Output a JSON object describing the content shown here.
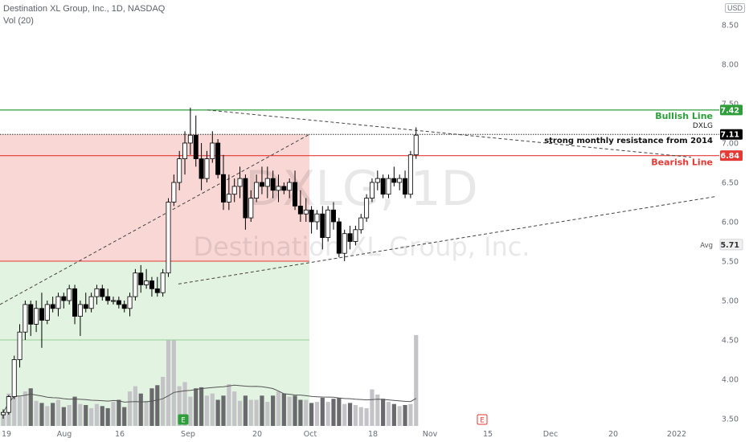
{
  "header": {
    "title": "Destination XL Group, Inc., 1D, NASDAQ",
    "volume_label": "Vol (20)",
    "currency_badge": "USD"
  },
  "watermark": {
    "symbol_line": "DXLG, 1D",
    "name_line": "Destination XL Group, Inc."
  },
  "colors": {
    "up_candle": "#ffffff",
    "down_candle": "#000000",
    "bullish": "#2e9e3b",
    "bearish": "#e53935",
    "red_zone": "#f7c9c7",
    "green_zone": "#d9efd7",
    "volume_light": "#c4c4c8",
    "volume_dark": "#6a6a6e",
    "volume_ma": "#555555"
  },
  "chart_data": {
    "type": "candlestick",
    "title": "Destination XL Group, Inc., 1D, NASDAQ",
    "y_range": [
      3.4,
      8.7
    ],
    "y_ticks": [
      "3.50",
      "4.00",
      "4.50",
      "5.00",
      "5.50",
      "6.00",
      "6.50",
      "7.00",
      "7.50",
      "8.00",
      "8.50"
    ],
    "x_tick_labels": [
      "19",
      "Aug",
      "16",
      "Sep",
      "20",
      "Oct",
      "18",
      "Nov",
      "15",
      "Dec",
      "20",
      "2022"
    ],
    "grid": false,
    "candles_ohlc": [
      [
        3.55,
        3.62,
        3.5,
        3.58
      ],
      [
        3.58,
        3.8,
        3.55,
        3.78
      ],
      [
        3.78,
        4.3,
        3.75,
        4.25
      ],
      [
        4.25,
        4.7,
        4.15,
        4.6
      ],
      [
        4.6,
        5.0,
        4.5,
        4.95
      ],
      [
        4.95,
        5.0,
        4.55,
        4.7
      ],
      [
        4.7,
        5.0,
        4.6,
        4.9
      ],
      [
        4.9,
        5.1,
        4.4,
        4.75
      ],
      [
        4.75,
        5.0,
        4.7,
        4.95
      ],
      [
        4.95,
        5.05,
        4.85,
        4.9
      ],
      [
        4.9,
        5.1,
        4.8,
        5.05
      ],
      [
        5.05,
        5.1,
        4.9,
        5.0
      ],
      [
        5.0,
        5.2,
        4.95,
        5.15
      ],
      [
        5.15,
        5.2,
        4.7,
        4.8
      ],
      [
        4.8,
        5.0,
        4.55,
        4.95
      ],
      [
        4.95,
        5.1,
        4.85,
        4.9
      ],
      [
        4.9,
        5.1,
        4.85,
        5.05
      ],
      [
        5.05,
        5.2,
        4.95,
        5.15
      ],
      [
        5.15,
        5.2,
        5.0,
        5.05
      ],
      [
        5.05,
        5.15,
        4.95,
        5.0
      ],
      [
        5.0,
        5.05,
        4.95,
        5.0
      ],
      [
        5.0,
        5.05,
        4.9,
        4.95
      ],
      [
        4.95,
        5.0,
        4.85,
        4.9
      ],
      [
        4.9,
        5.1,
        4.8,
        5.05
      ],
      [
        5.05,
        5.4,
        5.0,
        5.35
      ],
      [
        5.35,
        5.45,
        5.1,
        5.2
      ],
      [
        5.2,
        5.4,
        5.15,
        5.25
      ],
      [
        5.25,
        5.3,
        5.05,
        5.15
      ],
      [
        5.15,
        5.3,
        5.05,
        5.1
      ],
      [
        5.1,
        5.4,
        5.05,
        5.35
      ],
      [
        5.35,
        6.3,
        5.3,
        6.25
      ],
      [
        6.25,
        6.6,
        6.2,
        6.5
      ],
      [
        6.5,
        6.9,
        6.4,
        6.8
      ],
      [
        6.8,
        7.15,
        6.6,
        7.0
      ],
      [
        7.0,
        7.45,
        6.85,
        7.1
      ],
      [
        7.1,
        7.35,
        6.7,
        6.8
      ],
      [
        6.8,
        7.0,
        6.4,
        6.55
      ],
      [
        6.55,
        6.9,
        6.5,
        6.8
      ],
      [
        6.8,
        7.15,
        6.75,
        7.0
      ],
      [
        7.0,
        7.05,
        6.55,
        6.6
      ],
      [
        6.6,
        6.85,
        6.15,
        6.25
      ],
      [
        6.25,
        6.6,
        6.15,
        6.35
      ],
      [
        6.35,
        6.55,
        6.25,
        6.45
      ],
      [
        6.45,
        6.7,
        6.3,
        6.55
      ],
      [
        6.55,
        6.6,
        5.9,
        6.05
      ],
      [
        6.05,
        6.4,
        6.0,
        6.3
      ],
      [
        6.3,
        6.6,
        6.25,
        6.5
      ],
      [
        6.5,
        6.7,
        6.35,
        6.45
      ],
      [
        6.45,
        6.7,
        6.3,
        6.55
      ],
      [
        6.55,
        6.65,
        6.3,
        6.4
      ],
      [
        6.4,
        6.6,
        6.25,
        6.45
      ],
      [
        6.45,
        6.5,
        6.35,
        6.4
      ],
      [
        6.4,
        6.55,
        6.3,
        6.5
      ],
      [
        6.5,
        6.65,
        6.15,
        6.2
      ],
      [
        6.2,
        6.4,
        6.0,
        6.1
      ],
      [
        6.1,
        6.3,
        6.0,
        6.15
      ],
      [
        6.15,
        6.2,
        5.85,
        6.0
      ],
      [
        6.0,
        6.15,
        5.9,
        6.1
      ],
      [
        6.1,
        6.2,
        5.65,
        5.8
      ],
      [
        5.8,
        6.2,
        5.75,
        6.15
      ],
      [
        6.15,
        6.25,
        5.9,
        6.0
      ],
      [
        6.0,
        6.05,
        5.55,
        5.6
      ],
      [
        5.6,
        5.9,
        5.5,
        5.85
      ],
      [
        5.85,
        5.95,
        5.65,
        5.75
      ],
      [
        5.75,
        5.95,
        5.7,
        5.9
      ],
      [
        5.9,
        6.1,
        5.85,
        6.05
      ],
      [
        6.05,
        6.35,
        6.0,
        6.3
      ],
      [
        6.3,
        6.55,
        6.25,
        6.5
      ],
      [
        6.5,
        6.65,
        6.4,
        6.55
      ],
      [
        6.55,
        6.6,
        6.3,
        6.35
      ],
      [
        6.35,
        6.6,
        6.3,
        6.55
      ],
      [
        6.55,
        6.7,
        6.45,
        6.5
      ],
      [
        6.5,
        6.6,
        6.4,
        6.55
      ],
      [
        6.55,
        6.65,
        6.3,
        6.35
      ],
      [
        6.35,
        6.9,
        6.3,
        6.85
      ],
      [
        6.85,
        7.2,
        6.8,
        7.1
      ]
    ],
    "volume_relative": [
      0.13,
      0.31,
      0.42,
      0.28,
      0.33,
      0.36,
      0.24,
      0.22,
      0.19,
      0.22,
      0.25,
      0.18,
      0.2,
      0.28,
      0.21,
      0.2,
      0.17,
      0.21,
      0.19,
      0.17,
      0.23,
      0.25,
      0.18,
      0.33,
      0.38,
      0.31,
      0.24,
      0.36,
      0.39,
      0.47,
      0.82,
      0.82,
      0.38,
      0.42,
      0.28,
      0.36,
      0.37,
      0.29,
      0.31,
      0.25,
      0.29,
      0.4,
      0.33,
      0.24,
      0.29,
      0.25,
      0.25,
      0.29,
      0.23,
      0.29,
      0.33,
      0.31,
      0.28,
      0.29,
      0.25,
      0.25,
      0.22,
      0.23,
      0.27,
      0.23,
      0.26,
      0.27,
      0.21,
      0.22,
      0.2,
      0.18,
      0.17,
      0.35,
      0.3,
      0.26,
      0.23,
      0.21,
      0.19,
      0.2,
      0.21,
      0.87
    ],
    "annotations": [
      {
        "label": "Bullish Line",
        "price": 7.42,
        "badge": "7.42",
        "color": "#2e9e3b"
      },
      {
        "label": "DXLG",
        "price": 7.11,
        "badge": "7.11",
        "color": "#000000"
      },
      {
        "label": "strong monthly resistance from 2014",
        "price": 7.11
      },
      {
        "label": "Bearish Line",
        "price": 6.84,
        "badge": "6.84",
        "color": "#e53935"
      },
      {
        "label": "Avg",
        "price": 5.71,
        "badge": "5.71",
        "color": "#f0f0f0"
      }
    ],
    "zones": [
      {
        "name": "red-zone",
        "from": 5.5,
        "to": 7.11
      },
      {
        "name": "green-zone",
        "from": 3.4,
        "to": 5.5
      }
    ],
    "event_markers": [
      "E",
      "E"
    ]
  }
}
